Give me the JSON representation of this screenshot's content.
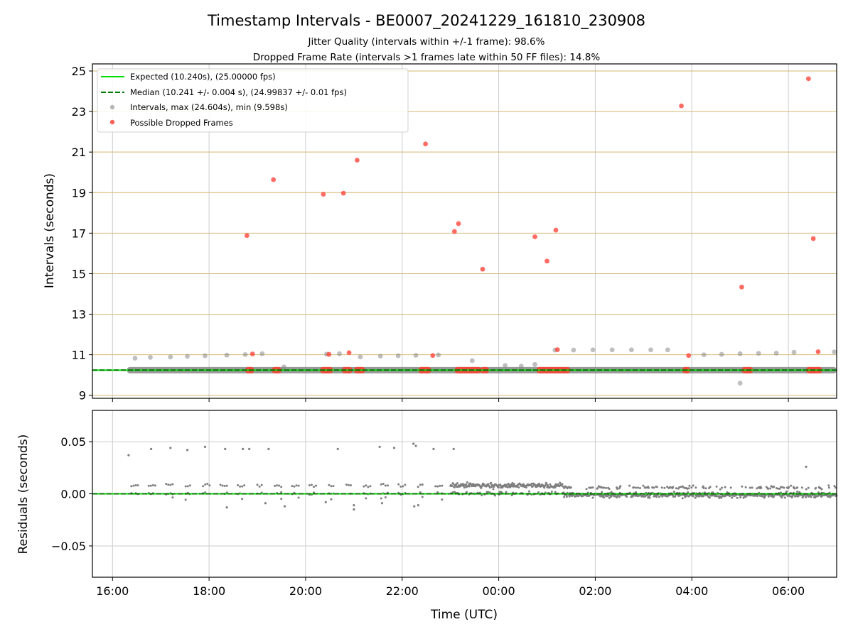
{
  "figure": {
    "title": "Timestamp Intervals - BE0007_20241229_161810_230908",
    "subtitle_1": "Jitter Quality (intervals within +/-1 frame): 98.6%",
    "subtitle_2": "Dropped Frame Rate (intervals >1 frames late within 50 FF files): 14.8%"
  },
  "colors": {
    "expected": "#00e000",
    "median": "#007a00",
    "intervals": "#7f7f7f",
    "dropped": "#ff3b30",
    "hgrid_top": "#d4b873",
    "grid": "#cccccc",
    "residuals": "#7f7f7f"
  },
  "chart_data": [
    {
      "type": "scatter",
      "x_axis": "time of day (UTC), hours since 16:00 on 2024-12-29",
      "xlim": [
        "15:35",
        "07:00"
      ],
      "x_ticks": [
        "16:00",
        "18:00",
        "20:00",
        "22:00",
        "00:00",
        "02:00",
        "04:00",
        "06:00"
      ],
      "xlabel": "",
      "ylabel": "Intervals (seconds)",
      "ylim": [
        8.85,
        25.35
      ],
      "y_ticks": [
        "9",
        "11",
        "13",
        "15",
        "17",
        "19",
        "21",
        "23",
        "25"
      ],
      "legend": {
        "placement": "upper left",
        "entries": [
          "Expected (10.240s), (25.00000 fps)",
          "Median (10.241 +/- 0.004 s), (24.99837 +/- 0.01 fps)",
          "Intervals, max (24.604s), min (9.598s)",
          "Possible Dropped Frames"
        ]
      },
      "expected_line": 10.24,
      "median_line": 10.241,
      "intervals_band": {
        "time_range": [
          "16:18",
          "07:00"
        ],
        "value": 10.24
      },
      "intervals_upper": [
        [
          "16:28",
          10.83
        ],
        [
          "16:47",
          10.87
        ],
        [
          "17:12",
          10.89
        ],
        [
          "17:33",
          10.92
        ],
        [
          "17:55",
          10.95
        ],
        [
          "18:22",
          10.98
        ],
        [
          "18:45",
          11.01
        ],
        [
          "19:06",
          11.05
        ],
        [
          "19:33",
          10.4
        ],
        [
          "20:26",
          11.03
        ],
        [
          "20:42",
          11.05
        ],
        [
          "21:08",
          10.89
        ],
        [
          "21:33",
          10.93
        ],
        [
          "21:55",
          10.95
        ],
        [
          "22:17",
          10.97
        ],
        [
          "22:45",
          10.99
        ],
        [
          "23:27",
          10.71
        ],
        [
          "00:08",
          10.47
        ],
        [
          "00:28",
          10.44
        ],
        [
          "00:45",
          10.52
        ],
        [
          "01:10",
          11.23
        ],
        [
          "01:33",
          11.23
        ],
        [
          "01:57",
          11.24
        ],
        [
          "02:21",
          11.24
        ],
        [
          "02:45",
          11.24
        ],
        [
          "03:09",
          11.24
        ],
        [
          "03:30",
          11.24
        ],
        [
          "04:15",
          11.0
        ],
        [
          "04:37",
          11.02
        ],
        [
          "05:00",
          11.05
        ],
        [
          "05:00",
          9.6
        ],
        [
          "05:23",
          11.07
        ],
        [
          "05:45",
          11.08
        ],
        [
          "06:07",
          11.12
        ],
        [
          "06:57",
          11.14
        ]
      ],
      "dropped_frames": [
        [
          "18:47",
          16.88
        ],
        [
          "18:54",
          11.04
        ],
        [
          "19:20",
          19.64
        ],
        [
          "20:22",
          18.92
        ],
        [
          "20:29",
          11.02
        ],
        [
          "20:47",
          18.97
        ],
        [
          "20:54",
          11.1
        ],
        [
          "21:04",
          20.6
        ],
        [
          "22:29",
          21.4
        ],
        [
          "22:38",
          10.96
        ],
        [
          "23:05",
          17.08
        ],
        [
          "23:10",
          17.47
        ],
        [
          "23:40",
          15.22
        ],
        [
          "00:45",
          16.82
        ],
        [
          "01:00",
          15.62
        ],
        [
          "01:11",
          17.15
        ],
        [
          "01:13",
          11.25
        ],
        [
          "03:47",
          23.28
        ],
        [
          "03:56",
          10.96
        ],
        [
          "05:02",
          14.34
        ],
        [
          "06:25",
          24.62
        ],
        [
          "06:31",
          16.73
        ],
        [
          "06:37",
          11.15
        ]
      ],
      "dropped_band_segments": [
        [
          "18:45",
          "18:56"
        ],
        [
          "19:18",
          "19:30"
        ],
        [
          "20:18",
          "20:34"
        ],
        [
          "20:45",
          "20:58"
        ],
        [
          "21:00",
          "21:14"
        ],
        [
          "22:20",
          "22:36"
        ],
        [
          "23:05",
          "23:38"
        ],
        [
          "23:37",
          "23:48"
        ],
        [
          "00:47",
          "01:29"
        ],
        [
          "03:48",
          "03:58"
        ],
        [
          "05:02",
          "05:16"
        ],
        [
          "06:22",
          "06:42"
        ]
      ]
    },
    {
      "type": "scatter",
      "xlabel": "Time (UTC)",
      "ylabel": "Residuals (seconds)",
      "ylim": [
        -0.08,
        0.08
      ],
      "y_ticks": [
        "0.05",
        "0.00",
        "−0.05"
      ],
      "x_ticks": [
        "16:00",
        "18:00",
        "20:00",
        "22:00",
        "00:00",
        "02:00",
        "04:00",
        "06:00"
      ],
      "zero_line": 0.0,
      "outliers": [
        [
          "16:20",
          0.037
        ],
        [
          "16:48",
          0.043
        ],
        [
          "17:12",
          0.044
        ],
        [
          "17:33",
          0.042
        ],
        [
          "17:55",
          0.045
        ],
        [
          "18:20",
          0.043
        ],
        [
          "18:42",
          0.043
        ],
        [
          "18:50",
          0.043
        ],
        [
          "19:14",
          0.043
        ],
        [
          "20:40",
          0.043
        ],
        [
          "21:32",
          0.045
        ],
        [
          "21:50",
          0.044
        ],
        [
          "22:14",
          0.048
        ],
        [
          "22:17",
          0.046
        ],
        [
          "22:39",
          0.043
        ],
        [
          "23:04",
          0.043
        ],
        [
          "06:22",
          0.026
        ],
        [
          "18:22",
          -0.013
        ],
        [
          "19:34",
          -0.012
        ],
        [
          "19:10",
          -0.009
        ],
        [
          "21:00",
          -0.015
        ],
        [
          "21:00",
          -0.011
        ],
        [
          "22:15",
          -0.012
        ],
        [
          "22:20",
          -0.011
        ],
        [
          "21:35",
          -0.009
        ],
        [
          "20:25",
          -0.008
        ]
      ]
    }
  ]
}
